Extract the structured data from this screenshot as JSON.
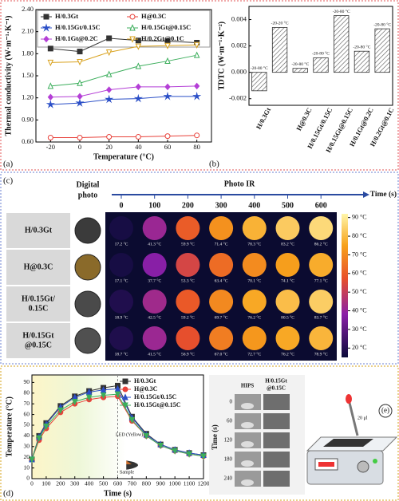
{
  "chart_data": [
    {
      "type": "line",
      "panel": "(a)",
      "xlabel": "Temperature (°C)",
      "ylabel": "Thermal conductivity (W·m⁻¹·K⁻¹)",
      "x": [
        -20,
        0,
        20,
        40,
        60,
        80
      ],
      "xlim": [
        -30,
        90
      ],
      "xticks": [
        -20,
        0,
        20,
        40,
        60,
        80
      ],
      "ylim": [
        0.6,
        2.4
      ],
      "yticks": [
        {
          "value": 0.6,
          "label": "0.60"
        },
        {
          "value": 0.9,
          "label": "0.90"
        },
        {
          "value": 1.2,
          "label": "1.20"
        },
        {
          "value": 1.5,
          "label": "1.50"
        },
        {
          "value": 1.8,
          "label": "1.80"
        },
        {
          "value": 2.1,
          "label": "2.10"
        },
        {
          "value": 2.4,
          "label": "2.40"
        }
      ],
      "series": [
        {
          "name": "H/0.3Gt",
          "color": "#333333",
          "marker": "square",
          "filled": true,
          "values": [
            1.87,
            1.83,
            2.01,
            1.98,
            1.97,
            1.95
          ]
        },
        {
          "name": "H@0.3C",
          "color": "#e8413a",
          "marker": "circle",
          "filled": false,
          "values": [
            0.66,
            0.66,
            0.67,
            0.67,
            0.68,
            0.69
          ]
        },
        {
          "name": "H/0.15Gt/0.15C",
          "color": "#2b4fc7",
          "marker": "star",
          "filled": true,
          "values": [
            1.11,
            1.13,
            1.18,
            1.19,
            1.22,
            1.22
          ]
        },
        {
          "name": "H/0.15Gt@0.15C",
          "color": "#3cae5c",
          "marker": "triangle",
          "filled": false,
          "values": [
            1.36,
            1.4,
            1.52,
            1.63,
            1.7,
            1.78
          ]
        },
        {
          "name": "H/0.1Gt@0.2C",
          "color": "#b43fd6",
          "marker": "diamond",
          "filled": true,
          "values": [
            1.21,
            1.22,
            1.31,
            1.35,
            1.35,
            1.36
          ]
        },
        {
          "name": "H/0.2Gt@0.1C",
          "color": "#d9a21e",
          "marker": "triangle-down",
          "filled": false,
          "values": [
            1.68,
            1.69,
            1.82,
            1.9,
            1.91,
            1.92
          ]
        }
      ]
    },
    {
      "type": "bar",
      "panel": "(b)",
      "ylabel": "TDTC (W·m⁻¹·K⁻²)",
      "categories": [
        "H/0.3Gt",
        null,
        "H@0.3C",
        "H/0.15Gt/0.15C",
        "H/0.15Gt@0.15C",
        "H/0.1Gt@0.2C",
        "H/0.2Gt@0.1C"
      ],
      "values": [
        -0.0014,
        0.0034,
        0.0003,
        0.0011,
        0.0043,
        0.0016,
        0.0033
      ],
      "annotations": [
        "-20-80 °C",
        "-20-20 °C",
        "-20-80 °C",
        "-20-80 °C",
        "-20-80 °C",
        "-20-80 °C",
        "-20-80 °C"
      ],
      "ylim": [
        -0.0025,
        0.005
      ],
      "yticks": [
        -0.002,
        {
          "value": 0,
          "label": "0.000"
        },
        0.002,
        0.004
      ]
    },
    {
      "type": "line",
      "panel": "(d)",
      "xlabel": "Time (s)",
      "ylabel": "Temperature (°C)",
      "x": [
        0,
        50,
        100,
        200,
        300,
        400,
        500,
        600,
        700,
        800,
        900,
        1000,
        1100,
        1200
      ],
      "xlim": [
        0,
        1200
      ],
      "xticks": [
        0,
        100,
        200,
        300,
        400,
        500,
        600,
        700,
        800,
        900,
        1000,
        1100,
        1200
      ],
      "ylim": [
        0,
        97
      ],
      "yticks": [
        0,
        10,
        20,
        30,
        40,
        50,
        60,
        70,
        80,
        90
      ],
      "annotations": [
        "LED (Yellow)",
        "Sample"
      ],
      "series": [
        {
          "name": "H/0.3Gt",
          "color": "#333333",
          "marker": "square",
          "filled": true,
          "values": [
            18,
            40,
            52,
            68,
            77,
            82,
            85,
            87,
            58,
            42,
            32,
            27,
            24,
            22
          ]
        },
        {
          "name": "H@0.3C",
          "color": "#e8413a",
          "marker": "circle",
          "filled": true,
          "values": [
            18,
            36,
            47,
            62,
            70,
            74,
            76,
            77,
            54,
            40,
            31,
            26,
            23,
            21
          ]
        },
        {
          "name": "H/0.15Gt/0.15C",
          "color": "#2b4fc7",
          "marker": "triangle",
          "filled": true,
          "values": [
            18,
            39,
            51,
            67,
            76,
            81,
            83,
            84,
            57,
            41,
            32,
            27,
            24,
            22
          ]
        },
        {
          "name": "H/0.15Gt@0.15C",
          "color": "#3cae5c",
          "marker": "triangle-down",
          "filled": true,
          "values": [
            18,
            38,
            49,
            64,
            72,
            76,
            78,
            79,
            55,
            40,
            31,
            26,
            23,
            21
          ]
        }
      ]
    }
  ],
  "ir_panel": {
    "label": "(c)",
    "photo_header": [
      "Digital",
      "photo"
    ],
    "ir_header": "Photo IR",
    "time_axis": "Time (s)",
    "times": [
      0,
      100,
      200,
      300,
      400,
      500,
      600
    ],
    "rows": [
      {
        "name": [
          "H/0.3Gt"
        ],
        "photo_color": "#3b3b3b",
        "temps": [
          17.2,
          41.3,
          59.9,
          71.4,
          78.3,
          83.2,
          86.2
        ],
        "temp_labels": [
          "17.2 °C",
          "41.3 °C",
          "59.9 °C",
          "71.4 °C",
          "78.3 °C",
          "83.2 °C",
          "86.2 °C"
        ]
      },
      {
        "name": [
          "H@0.3C"
        ],
        "photo_color": "#8a6a2a",
        "temps": [
          17.1,
          37.7,
          53.3,
          63.4,
          70.1,
          74.1,
          77.1
        ],
        "temp_labels": [
          "17.1 °C",
          "37.7 °C",
          "53.3 °C",
          "63.4 °C",
          "70.1 °C",
          "74.1 °C",
          "77.1 °C"
        ]
      },
      {
        "name": [
          "H/0.15Gt/",
          "0.15C"
        ],
        "photo_color": "#4a4a4a",
        "temps": [
          18.9,
          42.5,
          59.2,
          69.7,
          76.2,
          80.5,
          83.7
        ],
        "temp_labels": [
          "18.9 °C",
          "42.5 °C",
          "59.2 °C",
          "69.7 °C",
          "76.2 °C",
          "80.5 °C",
          "83.7 °C"
        ]
      },
      {
        "name": [
          "H/0.15Gt",
          "@0.15C"
        ],
        "photo_color": "#505050",
        "temps": [
          18.7,
          41.5,
          56.9,
          67.0,
          72.7,
          76.2,
          78.9
        ],
        "temp_labels": [
          "18.7 °C",
          "41.5 °C",
          "56.9 °C",
          "67.0 °C",
          "72.7 °C",
          "76.2 °C",
          "78.9 °C"
        ]
      }
    ],
    "colorbar": {
      "lim": [
        15,
        92
      ],
      "ticks": [
        {
          "value": 20,
          "label": "20 °C"
        },
        {
          "value": 30,
          "label": "30 °C"
        },
        {
          "value": 40,
          "label": "40 °C"
        },
        {
          "value": 50,
          "label": "50 °C"
        },
        {
          "value": 60,
          "label": "60 °C"
        },
        {
          "value": 70,
          "label": "70 °C"
        },
        {
          "value": 80,
          "label": "80 °C"
        },
        {
          "value": 90,
          "label": "90 °C"
        }
      ]
    }
  },
  "device_panel": {
    "label": "(e)",
    "hips": "HIPS",
    "sample": [
      "H/0.15Gt",
      "@0.15C"
    ],
    "time_axis": "Time (s)",
    "times": [
      0,
      60,
      120,
      180,
      240
    ],
    "volume": "20 μl"
  }
}
